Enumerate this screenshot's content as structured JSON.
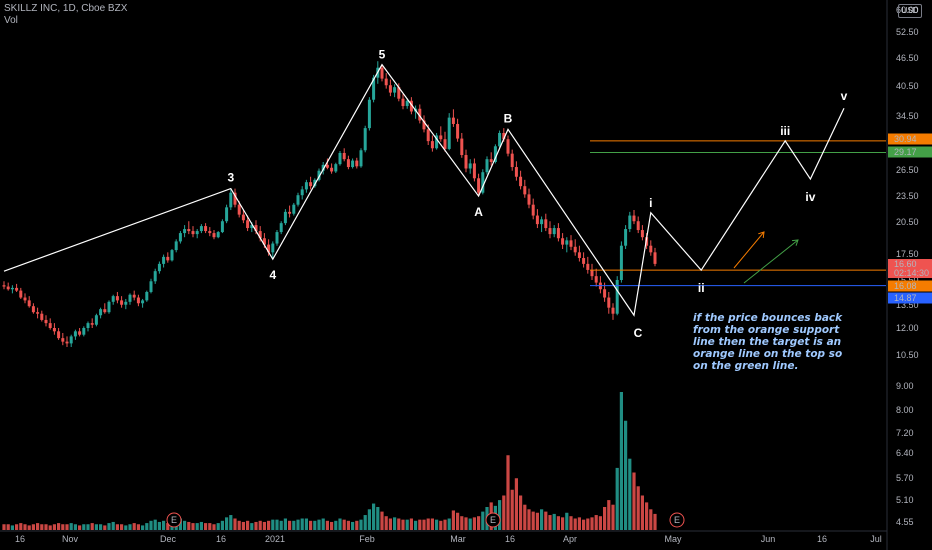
{
  "header": {
    "symbol_line": "SKILLZ INC, 1D, Cboe BZX",
    "volume_label": "Vol"
  },
  "currency_badge": "USD",
  "note_text": "if the price bounces back from the orange support line then the target is an orange line on the top so on the green line.",
  "colors": {
    "background": "#000000",
    "bull": "#26a69a",
    "bear": "#ef5350",
    "orange": "#f57c00",
    "green": "#43a047",
    "blue": "#2962ff",
    "wave": "#ffffff",
    "note": "#9fc9ff"
  },
  "chart_data": {
    "type": "candlestick",
    "title": "",
    "price_axis": {
      "scale": "log",
      "ticks": [
        "60.00",
        "52.50",
        "46.50",
        "40.50",
        "34.50",
        "30.50",
        "26.50",
        "23.50",
        "20.50",
        "17.50",
        "15.50",
        "13.50",
        "12.00",
        "10.50",
        "9.00",
        "8.00",
        "7.20",
        "6.40",
        "5.70",
        "5.10",
        "4.55"
      ]
    },
    "time_axis": {
      "ticks": [
        "16",
        "Nov",
        "Dec",
        "16",
        "2021",
        "Feb",
        "Mar",
        "16",
        "Apr",
        "May",
        "Jun",
        "16",
        "Jul"
      ]
    },
    "price_labels": [
      {
        "value": "30.94",
        "color": "#f57c00"
      },
      {
        "value": "29.17",
        "color": "#43a047"
      },
      {
        "value": "16.60",
        "color": "#ef5350"
      },
      {
        "value": "02:14:30",
        "color": "#ef5350"
      },
      {
        "value": "16.08",
        "color": "#f57c00"
      },
      {
        "value": "14.87",
        "color": "#2962ff"
      }
    ],
    "horizontal_lines": [
      {
        "name": "upper-orange-target",
        "price": 30.94,
        "color": "#f57c00"
      },
      {
        "name": "upper-green-target",
        "price": 29.17,
        "color": "#43a047"
      },
      {
        "name": "orange-support",
        "price": 16.08,
        "color": "#f57c00"
      },
      {
        "name": "blue-level",
        "price": 14.87,
        "color": "#2962ff"
      }
    ],
    "wave_points": [
      {
        "label": "",
        "date_index": 0,
        "price": 16.0
      },
      {
        "label": "3",
        "date_index": 54,
        "price": 24.3
      },
      {
        "label": "4",
        "date_index": 64,
        "price": 17.0
      },
      {
        "label": "5",
        "date_index": 90,
        "price": 45.5
      },
      {
        "label": "A",
        "date_index": 113,
        "price": 23.4
      },
      {
        "label": "B",
        "date_index": 120,
        "price": 32.8
      },
      {
        "label": "C",
        "date_index": 150,
        "price": 12.8
      },
      {
        "label": "i",
        "date_index": 154,
        "price": 21.5
      },
      {
        "label": "ii",
        "date_index": 166,
        "price": 16.08
      },
      {
        "label": "iii",
        "date_index": 186,
        "price": 30.94
      },
      {
        "label": "iv",
        "date_index": 192,
        "price": 25.5
      },
      {
        "label": "v",
        "date_index": 200,
        "price": 36.5
      }
    ],
    "ohlc_approx": [
      [
        14.9,
        15.2,
        14.6,
        14.8
      ],
      [
        14.8,
        15.1,
        14.5,
        14.6
      ],
      [
        14.6,
        14.9,
        14.3,
        14.7
      ],
      [
        14.7,
        15.0,
        14.4,
        14.5
      ],
      [
        14.5,
        14.7,
        13.9,
        14.0
      ],
      [
        14.0,
        14.3,
        13.6,
        13.8
      ],
      [
        13.8,
        14.1,
        13.3,
        13.4
      ],
      [
        13.4,
        13.6,
        12.9,
        13.0
      ],
      [
        13.0,
        13.3,
        12.6,
        12.9
      ],
      [
        12.9,
        13.1,
        12.4,
        12.5
      ],
      [
        12.5,
        12.8,
        12.1,
        12.3
      ],
      [
        12.3,
        12.6,
        11.9,
        12.0
      ],
      [
        12.0,
        12.3,
        11.6,
        11.8
      ],
      [
        11.8,
        12.0,
        11.3,
        11.4
      ],
      [
        11.4,
        11.7,
        11.0,
        11.2
      ],
      [
        11.2,
        11.5,
        10.9,
        11.1
      ],
      [
        11.1,
        11.6,
        10.9,
        11.5
      ],
      [
        11.5,
        11.9,
        11.3,
        11.8
      ],
      [
        11.8,
        12.0,
        11.5,
        11.6
      ],
      [
        11.6,
        12.1,
        11.5,
        12.0
      ],
      [
        12.0,
        12.4,
        11.8,
        12.3
      ],
      [
        12.3,
        12.6,
        12.0,
        12.2
      ],
      [
        12.2,
        12.9,
        12.1,
        12.8
      ],
      [
        12.8,
        13.3,
        12.6,
        13.2
      ],
      [
        13.2,
        13.6,
        12.9,
        13.0
      ],
      [
        13.0,
        13.8,
        12.9,
        13.7
      ],
      [
        13.7,
        14.2,
        13.5,
        14.1
      ],
      [
        14.1,
        14.4,
        13.6,
        13.8
      ],
      [
        13.8,
        14.1,
        13.3,
        13.5
      ],
      [
        13.5,
        13.9,
        13.2,
        13.7
      ],
      [
        13.7,
        14.3,
        13.5,
        14.2
      ],
      [
        14.2,
        14.5,
        13.8,
        14.0
      ],
      [
        14.0,
        14.2,
        13.4,
        13.6
      ],
      [
        13.6,
        13.9,
        13.3,
        13.8
      ],
      [
        13.8,
        14.5,
        13.7,
        14.4
      ],
      [
        14.4,
        15.4,
        14.3,
        15.2
      ],
      [
        15.2,
        16.2,
        15.0,
        16.0
      ],
      [
        16.0,
        16.8,
        15.8,
        16.6
      ],
      [
        16.6,
        17.4,
        16.3,
        17.2
      ],
      [
        17.2,
        17.6,
        16.7,
        16.9
      ],
      [
        16.9,
        17.9,
        16.8,
        17.8
      ],
      [
        17.8,
        18.8,
        17.6,
        18.6
      ],
      [
        18.6,
        19.6,
        18.4,
        19.4
      ],
      [
        19.4,
        20.2,
        19.0,
        19.8
      ],
      [
        19.8,
        20.6,
        19.3,
        19.6
      ],
      [
        19.6,
        20.1,
        19.0,
        19.3
      ],
      [
        19.3,
        19.8,
        18.9,
        19.6
      ],
      [
        19.6,
        20.3,
        19.4,
        20.1
      ],
      [
        20.1,
        20.4,
        19.4,
        19.6
      ],
      [
        19.6,
        20.0,
        19.1,
        19.4
      ],
      [
        19.4,
        19.7,
        18.8,
        19.0
      ],
      [
        19.0,
        19.6,
        18.9,
        19.5
      ],
      [
        19.5,
        20.8,
        19.4,
        20.6
      ],
      [
        20.6,
        22.4,
        20.4,
        22.1
      ],
      [
        22.1,
        24.2,
        21.8,
        23.8
      ],
      [
        23.8,
        24.3,
        22.1,
        22.4
      ],
      [
        22.4,
        22.8,
        21.0,
        21.3
      ],
      [
        21.3,
        21.8,
        20.4,
        20.7
      ],
      [
        20.7,
        21.2,
        19.6,
        19.9
      ],
      [
        19.9,
        20.5,
        19.5,
        20.2
      ],
      [
        20.2,
        20.7,
        19.3,
        19.6
      ],
      [
        19.6,
        20.1,
        18.6,
        18.9
      ],
      [
        18.9,
        19.4,
        18.0,
        18.3
      ],
      [
        18.3,
        18.8,
        17.3,
        17.6
      ],
      [
        17.6,
        18.6,
        17.0,
        18.4
      ],
      [
        18.4,
        19.7,
        18.2,
        19.5
      ],
      [
        19.5,
        20.6,
        19.3,
        20.4
      ],
      [
        20.4,
        21.9,
        20.2,
        21.6
      ],
      [
        21.6,
        22.3,
        21.0,
        21.4
      ],
      [
        21.4,
        22.6,
        21.2,
        22.4
      ],
      [
        22.4,
        23.8,
        22.2,
        23.5
      ],
      [
        23.5,
        24.6,
        23.0,
        24.2
      ],
      [
        24.2,
        25.4,
        23.8,
        25.1
      ],
      [
        25.1,
        25.8,
        24.2,
        24.6
      ],
      [
        24.6,
        25.6,
        24.4,
        25.4
      ],
      [
        25.4,
        26.9,
        25.2,
        26.6
      ],
      [
        26.6,
        27.8,
        26.1,
        27.4
      ],
      [
        27.4,
        28.3,
        26.8,
        27.0
      ],
      [
        27.0,
        27.6,
        26.2,
        26.5
      ],
      [
        26.5,
        27.7,
        26.3,
        27.5
      ],
      [
        27.5,
        29.4,
        27.3,
        29.1
      ],
      [
        29.1,
        29.8,
        27.9,
        28.2
      ],
      [
        28.2,
        28.7,
        26.8,
        27.1
      ],
      [
        27.1,
        28.3,
        26.9,
        28.0
      ],
      [
        28.0,
        28.4,
        26.9,
        27.2
      ],
      [
        27.2,
        29.8,
        27.0,
        29.5
      ],
      [
        29.5,
        33.4,
        29.2,
        33.0
      ],
      [
        33.0,
        38.6,
        32.6,
        38.1
      ],
      [
        38.1,
        43.2,
        37.6,
        42.6
      ],
      [
        42.6,
        46.3,
        41.3,
        44.8
      ],
      [
        44.8,
        45.6,
        41.8,
        42.4
      ],
      [
        42.4,
        43.6,
        40.3,
        41.0
      ],
      [
        41.0,
        42.2,
        38.8,
        39.5
      ],
      [
        39.5,
        41.2,
        38.6,
        40.6
      ],
      [
        40.6,
        41.4,
        37.8,
        38.3
      ],
      [
        38.3,
        39.2,
        36.3,
        36.9
      ],
      [
        36.9,
        38.4,
        36.4,
        37.9
      ],
      [
        37.9,
        38.6,
        35.4,
        35.9
      ],
      [
        35.9,
        37.0,
        34.6,
        36.4
      ],
      [
        36.4,
        37.2,
        33.8,
        34.3
      ],
      [
        34.3,
        35.2,
        32.3,
        32.8
      ],
      [
        32.8,
        33.6,
        30.3,
        30.9
      ],
      [
        30.9,
        31.8,
        29.3,
        29.8
      ],
      [
        29.8,
        32.2,
        29.6,
        31.8
      ],
      [
        31.8,
        33.3,
        30.8,
        31.2
      ],
      [
        31.2,
        32.4,
        29.3,
        29.7
      ],
      [
        29.7,
        35.6,
        29.5,
        34.8
      ],
      [
        34.8,
        36.3,
        33.2,
        33.7
      ],
      [
        33.7,
        34.6,
        30.8,
        31.3
      ],
      [
        31.3,
        32.2,
        28.4,
        28.8
      ],
      [
        28.8,
        29.6,
        26.4,
        26.9
      ],
      [
        26.9,
        28.2,
        26.2,
        27.6
      ],
      [
        27.6,
        28.3,
        25.2,
        25.6
      ],
      [
        25.6,
        26.2,
        23.4,
        23.8
      ],
      [
        23.8,
        26.8,
        23.6,
        26.4
      ],
      [
        26.4,
        28.6,
        26.1,
        28.2
      ],
      [
        28.2,
        29.2,
        27.3,
        27.8
      ],
      [
        27.8,
        30.4,
        27.6,
        30.1
      ],
      [
        30.1,
        32.6,
        29.8,
        32.2
      ],
      [
        32.2,
        33.0,
        30.8,
        31.2
      ],
      [
        31.2,
        31.8,
        28.6,
        29.0
      ],
      [
        29.0,
        29.6,
        26.6,
        27.1
      ],
      [
        27.1,
        27.9,
        25.3,
        25.8
      ],
      [
        25.8,
        26.6,
        24.2,
        24.6
      ],
      [
        24.6,
        25.4,
        23.2,
        23.6
      ],
      [
        23.6,
        24.3,
        22.0,
        22.4
      ],
      [
        22.4,
        23.1,
        20.8,
        21.2
      ],
      [
        21.2,
        21.9,
        19.9,
        20.3
      ],
      [
        20.3,
        21.1,
        19.5,
        20.8
      ],
      [
        20.8,
        21.4,
        19.6,
        19.9
      ],
      [
        19.9,
        20.6,
        18.9,
        19.3
      ],
      [
        19.3,
        20.2,
        19.0,
        19.9
      ],
      [
        19.9,
        20.4,
        18.6,
        18.9
      ],
      [
        18.9,
        19.4,
        17.9,
        18.3
      ],
      [
        18.3,
        19.0,
        17.6,
        18.7
      ],
      [
        18.7,
        19.2,
        17.8,
        18.1
      ],
      [
        18.1,
        18.8,
        17.3,
        17.6
      ],
      [
        17.6,
        18.2,
        16.8,
        17.1
      ],
      [
        17.1,
        17.6,
        16.3,
        16.6
      ],
      [
        16.6,
        17.2,
        15.8,
        16.1
      ],
      [
        16.1,
        16.6,
        15.3,
        15.6
      ],
      [
        15.6,
        16.2,
        14.8,
        15.1
      ],
      [
        15.1,
        15.6,
        14.3,
        14.6
      ],
      [
        14.6,
        15.1,
        13.7,
        14.0
      ],
      [
        14.0,
        14.4,
        12.9,
        13.3
      ],
      [
        13.3,
        13.6,
        12.5,
        12.9
      ],
      [
        12.9,
        15.6,
        12.8,
        15.3
      ],
      [
        15.3,
        18.6,
        15.1,
        18.2
      ],
      [
        18.2,
        20.2,
        17.9,
        19.8
      ],
      [
        19.8,
        21.6,
        19.5,
        21.2
      ],
      [
        21.2,
        21.8,
        20.3,
        20.6
      ],
      [
        20.6,
        21.1,
        19.4,
        19.7
      ],
      [
        19.7,
        20.2,
        18.7,
        19.0
      ],
      [
        19.0,
        19.4,
        17.9,
        18.2
      ],
      [
        18.2,
        18.7,
        17.3,
        17.6
      ],
      [
        17.6,
        18.0,
        16.4,
        16.6
      ]
    ],
    "volume_approx": [
      0.5,
      0.5,
      0.4,
      0.5,
      0.6,
      0.5,
      0.4,
      0.5,
      0.6,
      0.5,
      0.5,
      0.4,
      0.5,
      0.6,
      0.5,
      0.5,
      0.6,
      0.5,
      0.4,
      0.5,
      0.5,
      0.6,
      0.5,
      0.5,
      0.4,
      0.6,
      0.7,
      0.5,
      0.5,
      0.4,
      0.5,
      0.6,
      0.5,
      0.4,
      0.6,
      0.8,
      0.9,
      0.7,
      0.8,
      0.6,
      0.7,
      0.9,
      1.0,
      0.8,
      0.7,
      0.6,
      0.6,
      0.7,
      0.6,
      0.6,
      0.5,
      0.6,
      0.8,
      1.1,
      1.3,
      1.0,
      0.8,
      0.7,
      0.8,
      0.6,
      0.7,
      0.8,
      0.7,
      0.8,
      0.9,
      0.9,
      0.8,
      1.0,
      0.8,
      0.8,
      0.9,
      1.0,
      1.0,
      0.8,
      0.8,
      0.9,
      1.0,
      0.8,
      0.7,
      0.8,
      1.0,
      0.9,
      0.8,
      0.7,
      0.8,
      0.9,
      1.3,
      1.8,
      2.3,
      2.0,
      1.6,
      1.2,
      1.0,
      1.1,
      1.0,
      0.9,
      0.9,
      1.0,
      0.8,
      0.9,
      0.9,
      1.0,
      1.0,
      0.9,
      0.8,
      0.9,
      1.0,
      1.7,
      1.5,
      1.2,
      1.1,
      1.0,
      1.1,
      1.2,
      1.6,
      2.0,
      2.4,
      2.1,
      2.6,
      3.0,
      6.5,
      3.5,
      4.5,
      3.0,
      2.2,
      1.8,
      1.6,
      1.5,
      1.8,
      1.6,
      1.3,
      1.4,
      1.2,
      1.1,
      1.5,
      1.2,
      1.0,
      1.1,
      0.9,
      1.0,
      1.1,
      1.3,
      1.2,
      2.0,
      2.6,
      2.2,
      5.4,
      12.0,
      9.5,
      6.2,
      5.0,
      3.8,
      3.0,
      2.4,
      1.8,
      1.4
    ]
  }
}
